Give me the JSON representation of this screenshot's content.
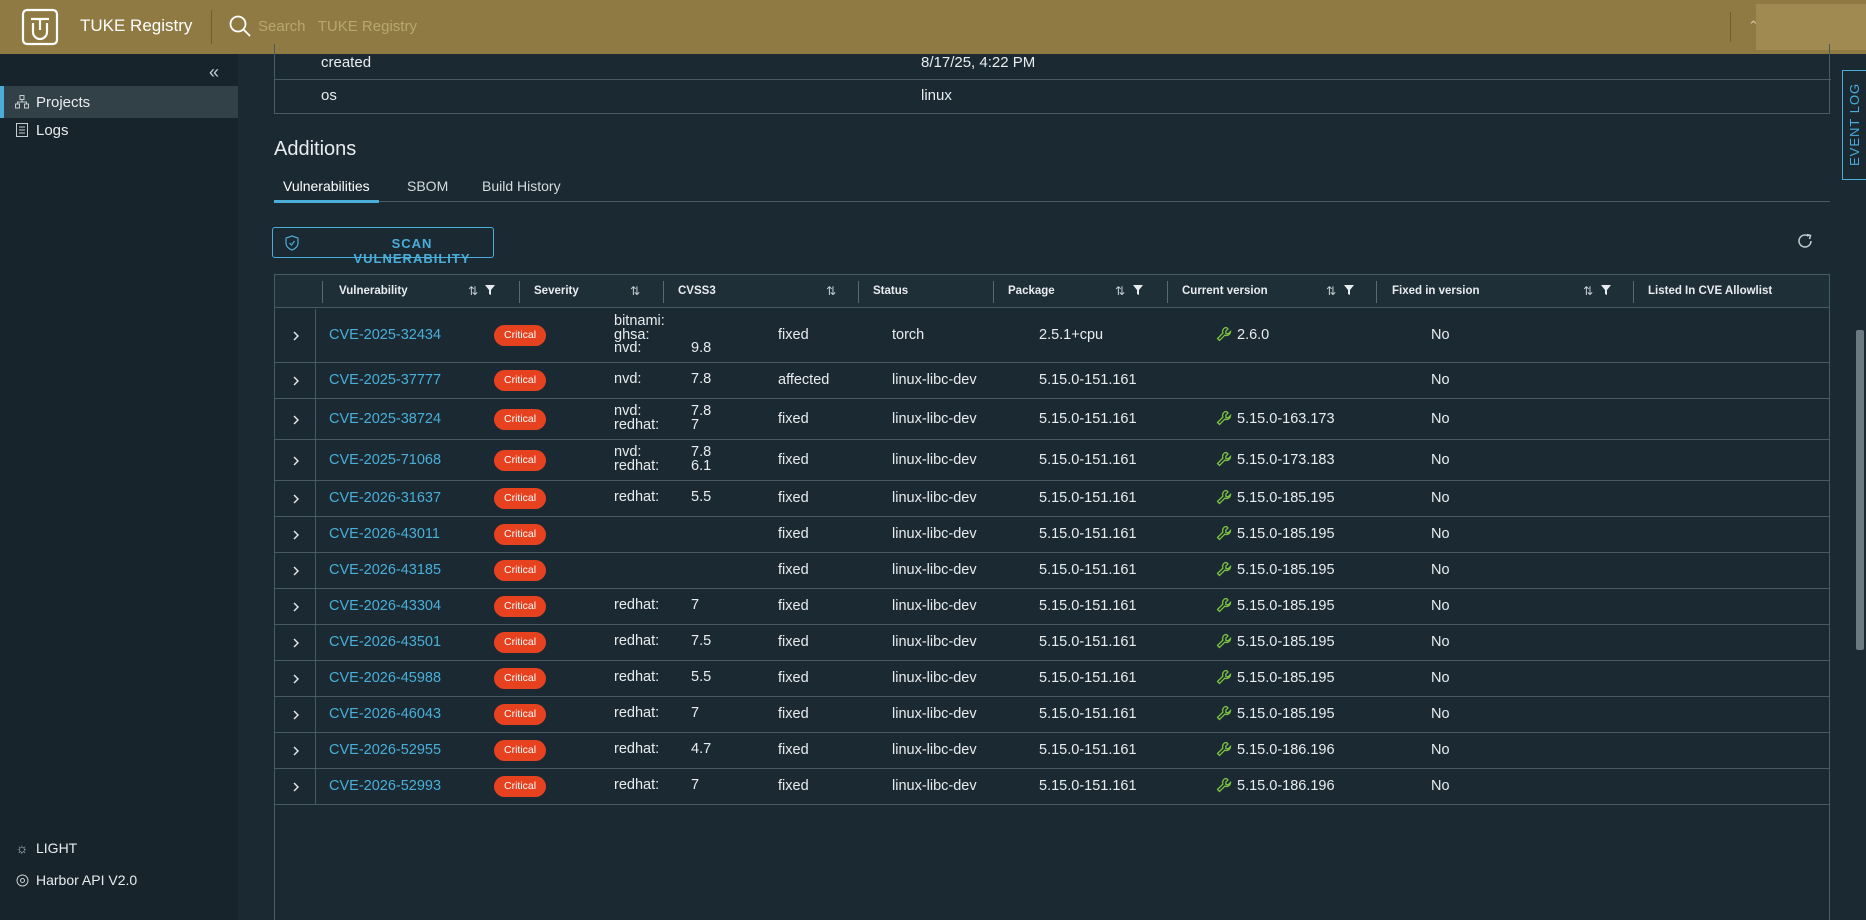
{
  "header": {
    "app_title": "TUKE Registry",
    "search_placeholder": "Search   TUKE Registry"
  },
  "sidebar": {
    "items": [
      {
        "label": "Projects",
        "icon": "projects-icon",
        "active": true
      },
      {
        "label": "Logs",
        "icon": "logs-icon",
        "active": false
      }
    ],
    "theme_label": "LIGHT",
    "api_label": "Harbor API V2.0"
  },
  "details": {
    "rows": [
      {
        "key": "created",
        "value": "8/17/25, 4:22 PM"
      },
      {
        "key": "os",
        "value": "linux"
      }
    ]
  },
  "additions": {
    "title": "Additions",
    "tabs": [
      {
        "label": "Vulnerabilities",
        "active": true
      },
      {
        "label": "SBOM",
        "active": false
      },
      {
        "label": "Build History",
        "active": false
      }
    ],
    "scan_button": "SCAN VULNERABILITY"
  },
  "table": {
    "columns": [
      "Vulnerability",
      "Severity",
      "CVSS3",
      "Status",
      "Package",
      "Current version",
      "Fixed in version",
      "Listed In CVE Allowlist"
    ],
    "rows": [
      {
        "cve": "CVE-2025-32434",
        "severity": "Critical",
        "cvss": [
          {
            "src": "bitnami:",
            "score": ""
          },
          {
            "src": "ghsa:",
            "score": ""
          },
          {
            "src": "nvd:",
            "score": "9.8"
          }
        ],
        "status": "fixed",
        "package": "torch",
        "current": "2.5.1+cpu",
        "fixed": "2.6.0",
        "allowlist": "No"
      },
      {
        "cve": "CVE-2025-37777",
        "severity": "Critical",
        "cvss": [
          {
            "src": "nvd:",
            "score": "7.8"
          }
        ],
        "status": "affected",
        "package": "linux-libc-dev",
        "current": "5.15.0-151.161",
        "fixed": "",
        "allowlist": "No"
      },
      {
        "cve": "CVE-2025-38724",
        "severity": "Critical",
        "cvss": [
          {
            "src": "nvd:",
            "score": "7.8"
          },
          {
            "src": "redhat:",
            "score": "7"
          }
        ],
        "status": "fixed",
        "package": "linux-libc-dev",
        "current": "5.15.0-151.161",
        "fixed": "5.15.0-163.173",
        "allowlist": "No"
      },
      {
        "cve": "CVE-2025-71068",
        "severity": "Critical",
        "cvss": [
          {
            "src": "nvd:",
            "score": "7.8"
          },
          {
            "src": "redhat:",
            "score": "6.1"
          }
        ],
        "status": "fixed",
        "package": "linux-libc-dev",
        "current": "5.15.0-151.161",
        "fixed": "5.15.0-173.183",
        "allowlist": "No"
      },
      {
        "cve": "CVE-2026-31637",
        "severity": "Critical",
        "cvss": [
          {
            "src": "redhat:",
            "score": "5.5"
          }
        ],
        "status": "fixed",
        "package": "linux-libc-dev",
        "current": "5.15.0-151.161",
        "fixed": "5.15.0-185.195",
        "allowlist": "No"
      },
      {
        "cve": "CVE-2026-43011",
        "severity": "Critical",
        "cvss": [],
        "status": "fixed",
        "package": "linux-libc-dev",
        "current": "5.15.0-151.161",
        "fixed": "5.15.0-185.195",
        "allowlist": "No"
      },
      {
        "cve": "CVE-2026-43185",
        "severity": "Critical",
        "cvss": [],
        "status": "fixed",
        "package": "linux-libc-dev",
        "current": "5.15.0-151.161",
        "fixed": "5.15.0-185.195",
        "allowlist": "No"
      },
      {
        "cve": "CVE-2026-43304",
        "severity": "Critical",
        "cvss": [
          {
            "src": "redhat:",
            "score": "7"
          }
        ],
        "status": "fixed",
        "package": "linux-libc-dev",
        "current": "5.15.0-151.161",
        "fixed": "5.15.0-185.195",
        "allowlist": "No"
      },
      {
        "cve": "CVE-2026-43501",
        "severity": "Critical",
        "cvss": [
          {
            "src": "redhat:",
            "score": "7.5"
          }
        ],
        "status": "fixed",
        "package": "linux-libc-dev",
        "current": "5.15.0-151.161",
        "fixed": "5.15.0-185.195",
        "allowlist": "No"
      },
      {
        "cve": "CVE-2026-45988",
        "severity": "Critical",
        "cvss": [
          {
            "src": "redhat:",
            "score": "5.5"
          }
        ],
        "status": "fixed",
        "package": "linux-libc-dev",
        "current": "5.15.0-151.161",
        "fixed": "5.15.0-185.195",
        "allowlist": "No"
      },
      {
        "cve": "CVE-2026-46043",
        "severity": "Critical",
        "cvss": [
          {
            "src": "redhat:",
            "score": "7"
          }
        ],
        "status": "fixed",
        "package": "linux-libc-dev",
        "current": "5.15.0-151.161",
        "fixed": "5.15.0-185.195",
        "allowlist": "No"
      },
      {
        "cve": "CVE-2026-52955",
        "severity": "Critical",
        "cvss": [
          {
            "src": "redhat:",
            "score": "4.7"
          }
        ],
        "status": "fixed",
        "package": "linux-libc-dev",
        "current": "5.15.0-151.161",
        "fixed": "5.15.0-186.196",
        "allowlist": "No"
      },
      {
        "cve": "CVE-2026-52993",
        "severity": "Critical",
        "cvss": [
          {
            "src": "redhat:",
            "score": "7"
          }
        ],
        "status": "fixed",
        "package": "linux-libc-dev",
        "current": "5.15.0-151.161",
        "fixed": "5.15.0-186.196",
        "allowlist": "No"
      }
    ]
  },
  "event_log_label": "EVENT LOG",
  "colors": {
    "header_bg": "#8f7a43",
    "page_bg": "#1b2a32",
    "accent": "#4aaed9",
    "critical": "#e6421f",
    "fixed_icon": "#7cc242"
  }
}
